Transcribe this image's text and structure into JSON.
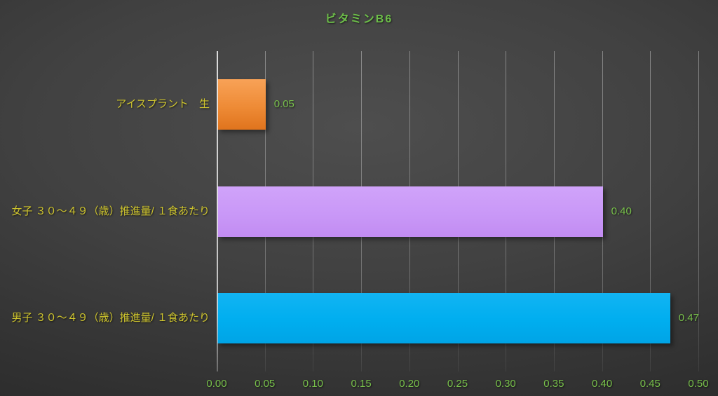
{
  "chart_data": {
    "type": "bar",
    "orientation": "horizontal",
    "title": "ビタミンB6",
    "categories": [
      "アイスプラント　生",
      "女子 ３０～４９（歳）推進量/ １食あたり",
      "男子 ３０～４９（歳）推進量/ １食あたり"
    ],
    "series": [
      {
        "name": "ビタミンB6",
        "values": [
          0.05,
          0.4,
          0.47
        ]
      }
    ],
    "value_labels": [
      "0.05",
      "0.40",
      "0.47"
    ],
    "xlim": [
      0,
      0.5
    ],
    "xticks": [
      0,
      0.05,
      0.1,
      0.15,
      0.2,
      0.25,
      0.3,
      0.35,
      0.4,
      0.45,
      0.5
    ],
    "xtick_labels": [
      "0.00",
      "0.05",
      "0.10",
      "0.15",
      "0.20",
      "0.25",
      "0.30",
      "0.35",
      "0.40",
      "0.45",
      "0.50"
    ],
    "grid": true,
    "legend": false,
    "bar_gradients": [
      [
        "#f8a257",
        "#ee8b36",
        "#e0741d"
      ],
      [
        "#d0a3fa",
        "#c998f7",
        "#c28cf2"
      ],
      [
        "#12b4f3",
        "#00aeef",
        "#00a4e6"
      ]
    ],
    "bar_colors": [
      "#ed8633",
      "#c998f7",
      "#00aeef"
    ]
  },
  "colors": {
    "title_green": "#6dbf49",
    "value_green": "#78c04b",
    "tick_green": "#78c04b",
    "category_yellow": "#cfc52e"
  }
}
